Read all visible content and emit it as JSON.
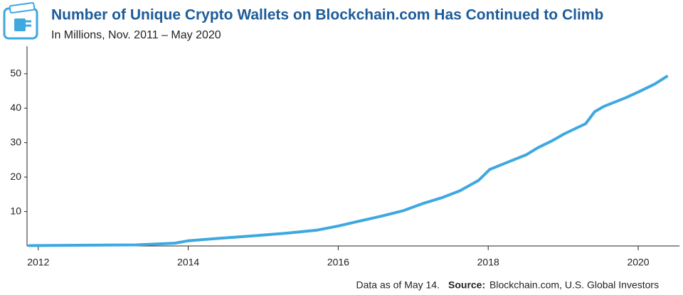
{
  "chart_data": {
    "type": "line",
    "title": "Number of Unique Crypto Wallets on Blockchain.com Has Continued to Climb",
    "subtitle": "In Millions, Nov. 2011 – May 2020",
    "note": "Data as of May 14.",
    "source_label": "Source:",
    "source": "Blockchain.com, U.S. Global Investors",
    "series": [
      {
        "name": "Unique wallets",
        "color": "#3ea8e0",
        "x": [
          2011.88,
          2013.3,
          2013.82,
          2014.0,
          2014.35,
          2014.9,
          2015.3,
          2015.72,
          2016.0,
          2016.24,
          2016.58,
          2016.86,
          2017.14,
          2017.38,
          2017.62,
          2017.87,
          2018.02,
          2018.28,
          2018.51,
          2018.66,
          2018.85,
          2019.01,
          2019.3,
          2019.42,
          2019.54,
          2019.83,
          2020.03,
          2020.22,
          2020.38
        ],
        "values": [
          0.1,
          0.3,
          0.8,
          1.5,
          2.1,
          3.0,
          3.7,
          4.6,
          5.8,
          7.0,
          8.7,
          10.2,
          12.4,
          14.0,
          16.0,
          19.0,
          22.2,
          24.5,
          26.5,
          28.5,
          30.5,
          32.5,
          35.5,
          39.0,
          40.5,
          43.0,
          45.0,
          47.0,
          49.2
        ]
      }
    ],
    "xlim": [
      2011.85,
      2020.55
    ],
    "xticks": [
      2012,
      2014,
      2016,
      2018,
      2020
    ],
    "ylim": [
      0,
      58
    ],
    "yticks": [
      10,
      20,
      30,
      40,
      50
    ],
    "grid": false
  }
}
